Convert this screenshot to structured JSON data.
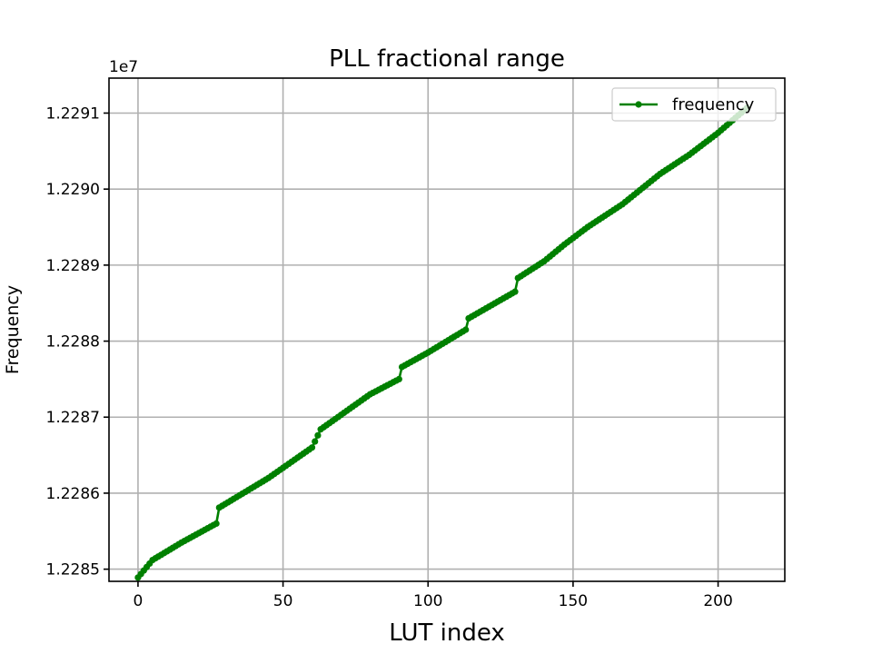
{
  "chart_data": {
    "type": "line",
    "title": "PLL fractional range",
    "xlabel": "LUT index",
    "ylabel": "Frequency",
    "y_offset_label": "1e7",
    "y_scale": 10000000,
    "xlim": [
      -10,
      223
    ],
    "ylim": [
      12284840,
      12291460
    ],
    "xticks": [
      0,
      50,
      100,
      150,
      200
    ],
    "xtick_labels": [
      "0",
      "50",
      "100",
      "150",
      "200"
    ],
    "yticks": [
      12285000,
      12286000,
      12287000,
      12288000,
      12289000,
      12290000,
      12291000
    ],
    "ytick_labels": [
      "1.2285",
      "1.2286",
      "1.2287",
      "1.2288",
      "1.2289",
      "1.2290",
      "1.2291"
    ],
    "grid": true,
    "legend_position": "top-right",
    "series": [
      {
        "name": "frequency",
        "color": "#008000",
        "marker": "circle",
        "x_start": 0,
        "x_end": 210,
        "y_start": 12284890,
        "y_end": 12291070,
        "anchors": [
          [
            0,
            12284890
          ],
          [
            5,
            12285120
          ],
          [
            15,
            12285350
          ],
          [
            27,
            12285600
          ],
          [
            28,
            12285810
          ],
          [
            45,
            12286200
          ],
          [
            60,
            12286600
          ],
          [
            63,
            12286840
          ],
          [
            80,
            12287300
          ],
          [
            90,
            12287500
          ],
          [
            91,
            12287660
          ],
          [
            100,
            12287850
          ],
          [
            113,
            12288150
          ],
          [
            114,
            12288300
          ],
          [
            130,
            12288650
          ],
          [
            131,
            12288830
          ],
          [
            140,
            12289050
          ],
          [
            147,
            12289270
          ],
          [
            155,
            12289500
          ],
          [
            167,
            12289800
          ],
          [
            180,
            12290200
          ],
          [
            190,
            12290450
          ],
          [
            200,
            12290740
          ],
          [
            210,
            12291070
          ]
        ]
      }
    ]
  }
}
